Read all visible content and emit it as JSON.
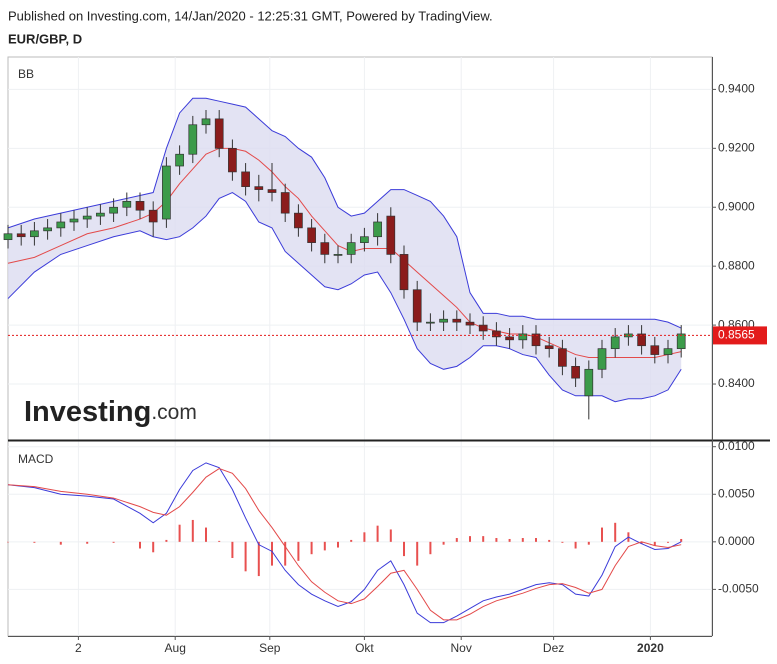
{
  "header": {
    "published": "Published on Investing.com, 14/Jan/2020 - 12:25:31 GMT, Powered by TradingView.",
    "symbol": "EUR/GBP, D"
  },
  "logo": {
    "main": "Investing",
    "suffix": ".com"
  },
  "chart_data": [
    {
      "type": "candlestick",
      "label": "BB",
      "up_color": "#3c9b4a",
      "down_color": "#8b1c1c",
      "grid": true,
      "xlim": [
        0,
        160
      ],
      "ylim": [
        0.821,
        0.951
      ],
      "yticks": [
        {
          "value": 0.84,
          "label": "0.8400"
        },
        {
          "value": 0.86,
          "label": "0.8600"
        },
        {
          "value": 0.88,
          "label": "0.8800"
        },
        {
          "value": 0.9,
          "label": "0.9000"
        },
        {
          "value": 0.92,
          "label": "0.9200"
        },
        {
          "value": 0.94,
          "label": "0.9400"
        }
      ],
      "last_price": 0.8565,
      "last_price_color": "#e31b1b",
      "x": [
        0,
        3,
        6,
        9,
        12,
        15,
        18,
        21,
        24,
        27,
        30,
        33,
        36,
        39,
        42,
        45,
        48,
        51,
        54,
        57,
        60,
        63,
        66,
        69,
        72,
        75,
        78,
        81,
        84,
        87,
        90,
        93,
        96,
        99,
        102,
        105,
        108,
        111,
        114,
        117,
        120,
        123,
        126,
        129,
        132,
        135,
        138,
        141,
        144,
        147,
        150,
        153
      ],
      "open": [
        0.889,
        0.891,
        0.89,
        0.892,
        0.893,
        0.895,
        0.896,
        0.897,
        0.898,
        0.9,
        0.902,
        0.899,
        0.896,
        0.914,
        0.918,
        0.928,
        0.93,
        0.92,
        0.912,
        0.907,
        0.906,
        0.905,
        0.898,
        0.893,
        0.888,
        0.884,
        0.884,
        0.888,
        0.89,
        0.897,
        0.884,
        0.872,
        0.861,
        0.861,
        0.862,
        0.861,
        0.86,
        0.858,
        0.856,
        0.855,
        0.857,
        0.853,
        0.852,
        0.846,
        0.836,
        0.845,
        0.852,
        0.856,
        0.857,
        0.853,
        0.85,
        0.852
      ],
      "high": [
        0.894,
        0.894,
        0.895,
        0.896,
        0.898,
        0.899,
        0.9,
        0.901,
        0.903,
        0.905,
        0.905,
        0.902,
        0.917,
        0.921,
        0.931,
        0.933,
        0.933,
        0.923,
        0.915,
        0.911,
        0.915,
        0.908,
        0.901,
        0.896,
        0.891,
        0.887,
        0.891,
        0.893,
        0.898,
        0.9,
        0.887,
        0.875,
        0.864,
        0.865,
        0.865,
        0.864,
        0.863,
        0.861,
        0.859,
        0.86,
        0.86,
        0.856,
        0.855,
        0.849,
        0.848,
        0.855,
        0.859,
        0.86,
        0.86,
        0.856,
        0.855,
        0.86
      ],
      "low": [
        0.886,
        0.887,
        0.887,
        0.889,
        0.89,
        0.892,
        0.893,
        0.894,
        0.895,
        0.897,
        0.896,
        0.89,
        0.893,
        0.911,
        0.915,
        0.925,
        0.917,
        0.909,
        0.904,
        0.902,
        0.902,
        0.895,
        0.89,
        0.885,
        0.881,
        0.881,
        0.881,
        0.885,
        0.887,
        0.881,
        0.869,
        0.858,
        0.858,
        0.858,
        0.858,
        0.857,
        0.855,
        0.853,
        0.852,
        0.852,
        0.85,
        0.849,
        0.843,
        0.839,
        0.828,
        0.842,
        0.849,
        0.853,
        0.85,
        0.847,
        0.847,
        0.849
      ],
      "close": [
        0.891,
        0.89,
        0.892,
        0.893,
        0.895,
        0.896,
        0.897,
        0.898,
        0.9,
        0.902,
        0.899,
        0.895,
        0.914,
        0.918,
        0.928,
        0.93,
        0.92,
        0.912,
        0.907,
        0.906,
        0.905,
        0.898,
        0.893,
        0.888,
        0.884,
        0.884,
        0.888,
        0.89,
        0.895,
        0.884,
        0.872,
        0.861,
        0.861,
        0.862,
        0.861,
        0.86,
        0.858,
        0.856,
        0.855,
        0.857,
        0.853,
        0.852,
        0.846,
        0.842,
        0.845,
        0.852,
        0.856,
        0.857,
        0.853,
        0.85,
        0.852,
        0.857
      ],
      "bands": {
        "band_color": "#3b3bd9",
        "middle_color": "#e34a4a",
        "fill": "#dcdcf0",
        "x": [
          0,
          6,
          12,
          18,
          24,
          30,
          33,
          36,
          39,
          42,
          45,
          48,
          51,
          54,
          57,
          60,
          63,
          66,
          69,
          72,
          75,
          78,
          81,
          84,
          87,
          90,
          93,
          96,
          99,
          102,
          105,
          108,
          111,
          114,
          117,
          120,
          123,
          126,
          129,
          132,
          135,
          138,
          141,
          144,
          147,
          150,
          153
        ],
        "upper": [
          0.893,
          0.896,
          0.898,
          0.9,
          0.902,
          0.904,
          0.905,
          0.92,
          0.932,
          0.937,
          0.937,
          0.936,
          0.935,
          0.934,
          0.93,
          0.926,
          0.924,
          0.92,
          0.917,
          0.91,
          0.9,
          0.897,
          0.898,
          0.902,
          0.906,
          0.906,
          0.904,
          0.902,
          0.897,
          0.89,
          0.871,
          0.864,
          0.864,
          0.863,
          0.863,
          0.862,
          0.862,
          0.862,
          0.862,
          0.862,
          0.862,
          0.862,
          0.862,
          0.862,
          0.862,
          0.861,
          0.859
        ],
        "middle": [
          0.881,
          0.883,
          0.887,
          0.891,
          0.893,
          0.896,
          0.898,
          0.902,
          0.908,
          0.913,
          0.918,
          0.92,
          0.92,
          0.919,
          0.916,
          0.912,
          0.907,
          0.903,
          0.897,
          0.892,
          0.887,
          0.885,
          0.886,
          0.886,
          0.886,
          0.882,
          0.878,
          0.874,
          0.87,
          0.866,
          0.861,
          0.859,
          0.858,
          0.857,
          0.857,
          0.856,
          0.854,
          0.852,
          0.85,
          0.849,
          0.849,
          0.849,
          0.849,
          0.849,
          0.849,
          0.85,
          0.851
        ],
        "lower": [
          0.869,
          0.878,
          0.884,
          0.887,
          0.89,
          0.892,
          0.89,
          0.889,
          0.89,
          0.893,
          0.897,
          0.903,
          0.905,
          0.902,
          0.895,
          0.893,
          0.885,
          0.881,
          0.877,
          0.873,
          0.872,
          0.874,
          0.877,
          0.878,
          0.871,
          0.862,
          0.852,
          0.847,
          0.845,
          0.846,
          0.849,
          0.853,
          0.853,
          0.852,
          0.85,
          0.849,
          0.843,
          0.838,
          0.836,
          0.836,
          0.836,
          0.834,
          0.835,
          0.835,
          0.836,
          0.838,
          0.845
        ]
      }
    },
    {
      "type": "macd",
      "label": "MACD",
      "grid": true,
      "xlim": [
        0,
        160
      ],
      "ylim": [
        -0.0099,
        0.0106
      ],
      "yticks": [
        {
          "value": 0.01,
          "label": "0.0100"
        },
        {
          "value": 0.005,
          "label": "0.0050"
        },
        {
          "value": 0,
          "label": "0.0000"
        },
        {
          "value": -0.005,
          "label": "-0.0050"
        }
      ],
      "xticks": [
        {
          "value": 16,
          "label": "2"
        },
        {
          "value": 38,
          "label": "Aug"
        },
        {
          "value": 59.5,
          "label": "Sep"
        },
        {
          "value": 81,
          "label": "Okt"
        },
        {
          "value": 103,
          "label": "Nov"
        },
        {
          "value": 124,
          "label": "Dez"
        },
        {
          "value": 146,
          "label": "2020"
        }
      ],
      "x": [
        0,
        6,
        12,
        18,
        24,
        30,
        33,
        36,
        39,
        42,
        45,
        48,
        51,
        54,
        57,
        60,
        63,
        66,
        69,
        72,
        75,
        78,
        81,
        84,
        87,
        90,
        93,
        96,
        99,
        102,
        105,
        108,
        111,
        114,
        117,
        120,
        123,
        126,
        129,
        132,
        135,
        138,
        141,
        144,
        147,
        150,
        153
      ],
      "series": [
        {
          "color": "#3b3bd9",
          "values": [
            0.006,
            0.0057,
            0.005,
            0.0048,
            0.0045,
            0.003,
            0.002,
            0.003,
            0.0055,
            0.0075,
            0.0083,
            0.0078,
            0.0055,
            0.0025,
            -0.0003,
            -0.001,
            -0.003,
            -0.0045,
            -0.0055,
            -0.0062,
            -0.0068,
            -0.0063,
            -0.005,
            -0.003,
            -0.002,
            -0.0045,
            -0.0075,
            -0.0085,
            -0.0085,
            -0.0078,
            -0.007,
            -0.0062,
            -0.0058,
            -0.0055,
            -0.005,
            -0.0045,
            -0.0043,
            -0.0045,
            -0.0055,
            -0.0057,
            -0.0035,
            -0.0005,
            0.0005,
            -0.0002,
            -0.0008,
            -0.0007,
            0.0
          ]
        },
        {
          "color": "#e34a4a",
          "values": [
            0.006,
            0.0058,
            0.0053,
            0.005,
            0.0046,
            0.0037,
            0.0031,
            0.0028,
            0.0037,
            0.0052,
            0.0068,
            0.0077,
            0.0072,
            0.0056,
            0.0033,
            0.0015,
            -0.0005,
            -0.0025,
            -0.0042,
            -0.0053,
            -0.0062,
            -0.0065,
            -0.006,
            -0.0047,
            -0.0033,
            -0.003,
            -0.005,
            -0.0072,
            -0.0082,
            -0.0082,
            -0.0076,
            -0.0068,
            -0.0062,
            -0.0058,
            -0.0054,
            -0.0049,
            -0.0045,
            -0.0044,
            -0.0048,
            -0.0054,
            -0.005,
            -0.0025,
            -0.0005,
            0.0,
            -0.0004,
            -0.0006,
            -0.0003
          ]
        }
      ],
      "histogram": {
        "color": "#e8504f",
        "values": [
          0.0,
          -0.0001,
          -0.0003,
          -0.0002,
          -0.0001,
          -0.0007,
          -0.0011,
          0.0002,
          0.0018,
          0.0023,
          0.0015,
          0.0001,
          -0.0017,
          -0.0031,
          -0.0036,
          -0.0025,
          -0.0025,
          -0.002,
          -0.0013,
          -0.0009,
          -0.0006,
          0.0002,
          0.001,
          0.0017,
          0.0013,
          -0.0015,
          -0.0025,
          -0.0013,
          -0.0003,
          0.0004,
          0.0006,
          0.0006,
          0.0004,
          0.0003,
          0.0004,
          0.0004,
          0.0002,
          -0.0001,
          -0.0007,
          -0.0003,
          0.0015,
          0.002,
          0.001,
          -0.0002,
          -0.0004,
          -0.0001,
          0.0003
        ]
      }
    }
  ]
}
